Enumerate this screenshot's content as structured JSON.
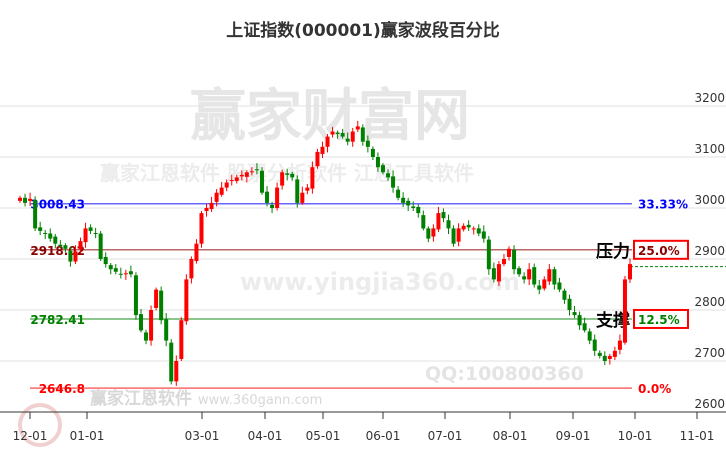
{
  "chart_data": {
    "type": "candlestick",
    "title": "上证指数(000001)赢家波段百分比",
    "y_ticks": [
      2600,
      2700,
      2800,
      2900,
      3000,
      3100,
      3200
    ],
    "ylim": [
      2600,
      3200
    ],
    "x_ticks": [
      "12-01",
      "01-01",
      "03-01",
      "04-01",
      "05-01",
      "06-01",
      "07-01",
      "08-01",
      "09-01",
      "10-01",
      "11-01"
    ],
    "grid": true,
    "levels": [
      {
        "value": 3008.43,
        "label": "3008.43",
        "pct": "33.33%",
        "color": "#0000ff"
      },
      {
        "value": 2918.02,
        "label": "2918.02",
        "pct": "25.0%",
        "color": "#8b0000",
        "boxed": true,
        "note": "压力"
      },
      {
        "value": 2782.41,
        "label": "2782.41",
        "pct": "12.5%",
        "color": "#008000",
        "boxed": true,
        "note": "支撑"
      },
      {
        "value": 2646.8,
        "label": "2646.8",
        "pct": "0.0%",
        "color": "#ff0000"
      }
    ],
    "current_price": 2885,
    "closes": [
      3020,
      3010,
      3018,
      2960,
      2955,
      2950,
      2940,
      2930,
      2925,
      2920,
      2895,
      2915,
      2935,
      2960,
      2955,
      2950,
      2900,
      2890,
      2880,
      2875,
      2870,
      2872,
      2870,
      2790,
      2760,
      2740,
      2800,
      2840,
      2780,
      2740,
      2660,
      2700,
      2780,
      2860,
      2900,
      2930,
      2990,
      3000,
      3010,
      3030,
      3040,
      3050,
      3055,
      3060,
      3065,
      3070,
      3072,
      3075,
      3030,
      3010,
      3000,
      3040,
      3070,
      3065,
      3060,
      3010,
      3030,
      3040,
      3080,
      3110,
      3120,
      3140,
      3150,
      3145,
      3140,
      3130,
      3150,
      3160,
      3130,
      3120,
      3100,
      3080,
      3070,
      3060,
      3040,
      3020,
      3010,
      3005,
      3000,
      2990,
      2960,
      2940,
      2960,
      2990,
      2980,
      2960,
      2930,
      2960,
      2965,
      2962,
      2960,
      2950,
      2940,
      2880,
      2860,
      2890,
      2900,
      2920,
      2880,
      2870,
      2860,
      2880,
      2850,
      2840,
      2860,
      2880,
      2850,
      2840,
      2820,
      2800,
      2790,
      2770,
      2760,
      2740,
      2720,
      2710,
      2700,
      2710,
      2720,
      2740,
      2860,
      2890
    ]
  },
  "watermarks": {
    "main": "赢家财富网",
    "url": "www.yingjia360.com",
    "qq": "QQ:100800360",
    "logo": "赢家江恩软件",
    "logo_url": "www.360gann.com",
    "sub": "赢家江恩软件 股票分析软件 江恩工具软件"
  }
}
